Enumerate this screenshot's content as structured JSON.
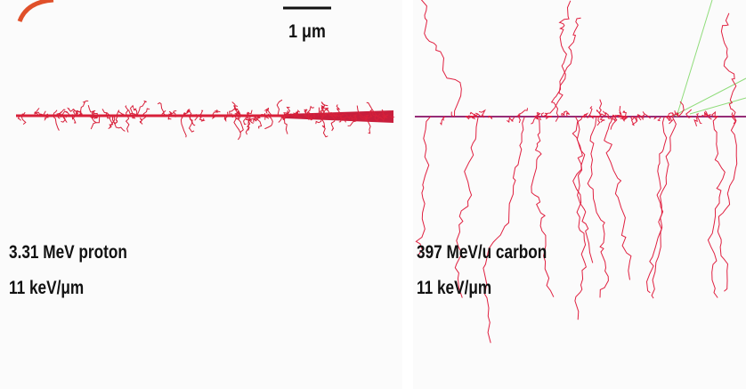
{
  "scale_bar": {
    "label": "1 μm"
  },
  "panels": [
    {
      "particle": "3.31 MeV proton",
      "let": "11 keV/μm"
    },
    {
      "particle": "397 MeV/u carbon",
      "let": "11 keV/μm"
    }
  ]
}
